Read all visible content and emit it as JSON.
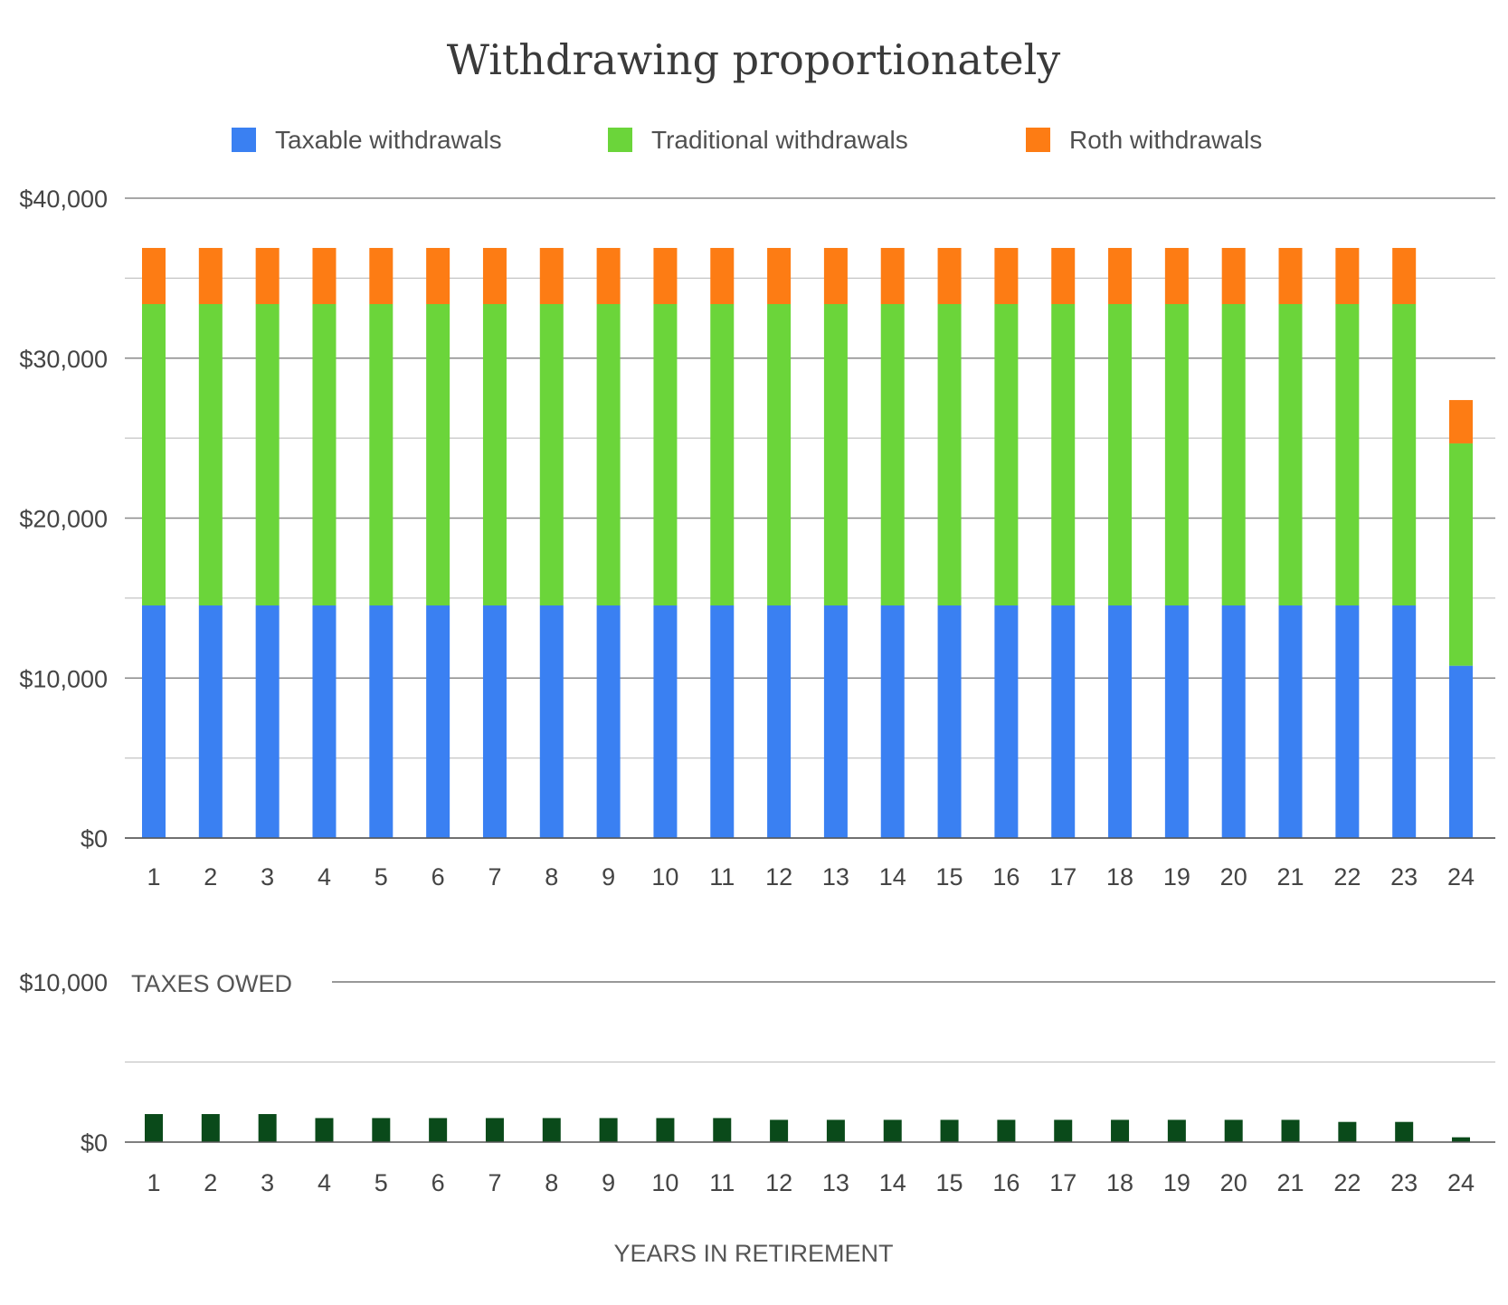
{
  "chart_data": [
    {
      "type": "bar",
      "stacked": true,
      "title": "Withdrawing proportionately",
      "categories": [
        "1",
        "2",
        "3",
        "4",
        "5",
        "6",
        "7",
        "8",
        "9",
        "10",
        "11",
        "12",
        "13",
        "14",
        "15",
        "16",
        "17",
        "18",
        "19",
        "20",
        "21",
        "22",
        "23",
        "24"
      ],
      "series": [
        {
          "name": "Taxable withdrawals",
          "color": "#3a80f2",
          "values": [
            14540,
            14540,
            14540,
            14540,
            14540,
            14540,
            14540,
            14540,
            14540,
            14540,
            14540,
            14540,
            14540,
            14540,
            14540,
            14540,
            14540,
            14540,
            14540,
            14540,
            14540,
            14540,
            14540,
            10770
          ]
        },
        {
          "name": "Traditional withdrawals",
          "color": "#6bd53a",
          "values": [
            18840,
            18840,
            18840,
            18840,
            18840,
            18840,
            18840,
            18840,
            18840,
            18840,
            18840,
            18840,
            18840,
            18840,
            18840,
            18840,
            18840,
            18840,
            18840,
            18840,
            18840,
            18840,
            18840,
            13900
          ]
        },
        {
          "name": "Roth withdrawals",
          "color": "#fd7c14",
          "values": [
            3510,
            3510,
            3510,
            3510,
            3510,
            3510,
            3510,
            3510,
            3510,
            3510,
            3510,
            3510,
            3510,
            3510,
            3510,
            3510,
            3510,
            3510,
            3510,
            3510,
            3510,
            3510,
            3510,
            2710
          ]
        }
      ],
      "ylim": [
        0,
        40000
      ],
      "yticks": [
        "$0",
        "$10,000",
        "$20,000",
        "$30,000",
        "$40,000"
      ],
      "grid": true,
      "legend": "top"
    },
    {
      "type": "bar",
      "title": "TAXES OWED",
      "categories": [
        "1",
        "2",
        "3",
        "4",
        "5",
        "6",
        "7",
        "8",
        "9",
        "10",
        "11",
        "12",
        "13",
        "14",
        "15",
        "16",
        "17",
        "18",
        "19",
        "20",
        "21",
        "22",
        "23",
        "24"
      ],
      "series": [
        {
          "color": "#0a4a1a",
          "values": [
            1750,
            1750,
            1750,
            1500,
            1500,
            1500,
            1500,
            1500,
            1500,
            1500,
            1500,
            1390,
            1390,
            1390,
            1390,
            1390,
            1390,
            1390,
            1390,
            1390,
            1390,
            1260,
            1260,
            300
          ]
        }
      ],
      "xlabel": "YEARS IN RETIREMENT",
      "ylim": [
        0,
        10000
      ],
      "yticks": [
        "$0",
        "$10,000"
      ],
      "grid": true
    }
  ]
}
